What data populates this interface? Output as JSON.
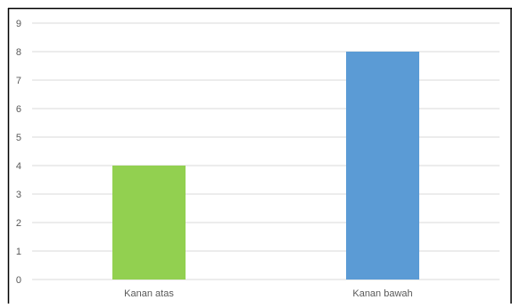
{
  "chart_data": {
    "type": "bar",
    "categories": [
      "Kanan atas",
      "Kanan bawah"
    ],
    "values": [
      4,
      8
    ],
    "bar_colors": [
      "#92d050",
      "#5b9bd5"
    ],
    "title": "",
    "xlabel": "",
    "ylabel": "",
    "ylim": [
      0,
      9
    ],
    "yticks": [
      "0",
      "1",
      "2",
      "3",
      "4",
      "5",
      "6",
      "7",
      "8",
      "9"
    ],
    "grid": true,
    "legend": "none"
  },
  "colors": {
    "gridline": "#d9d9d9",
    "border": "#000000",
    "tick_text": "#595959"
  }
}
